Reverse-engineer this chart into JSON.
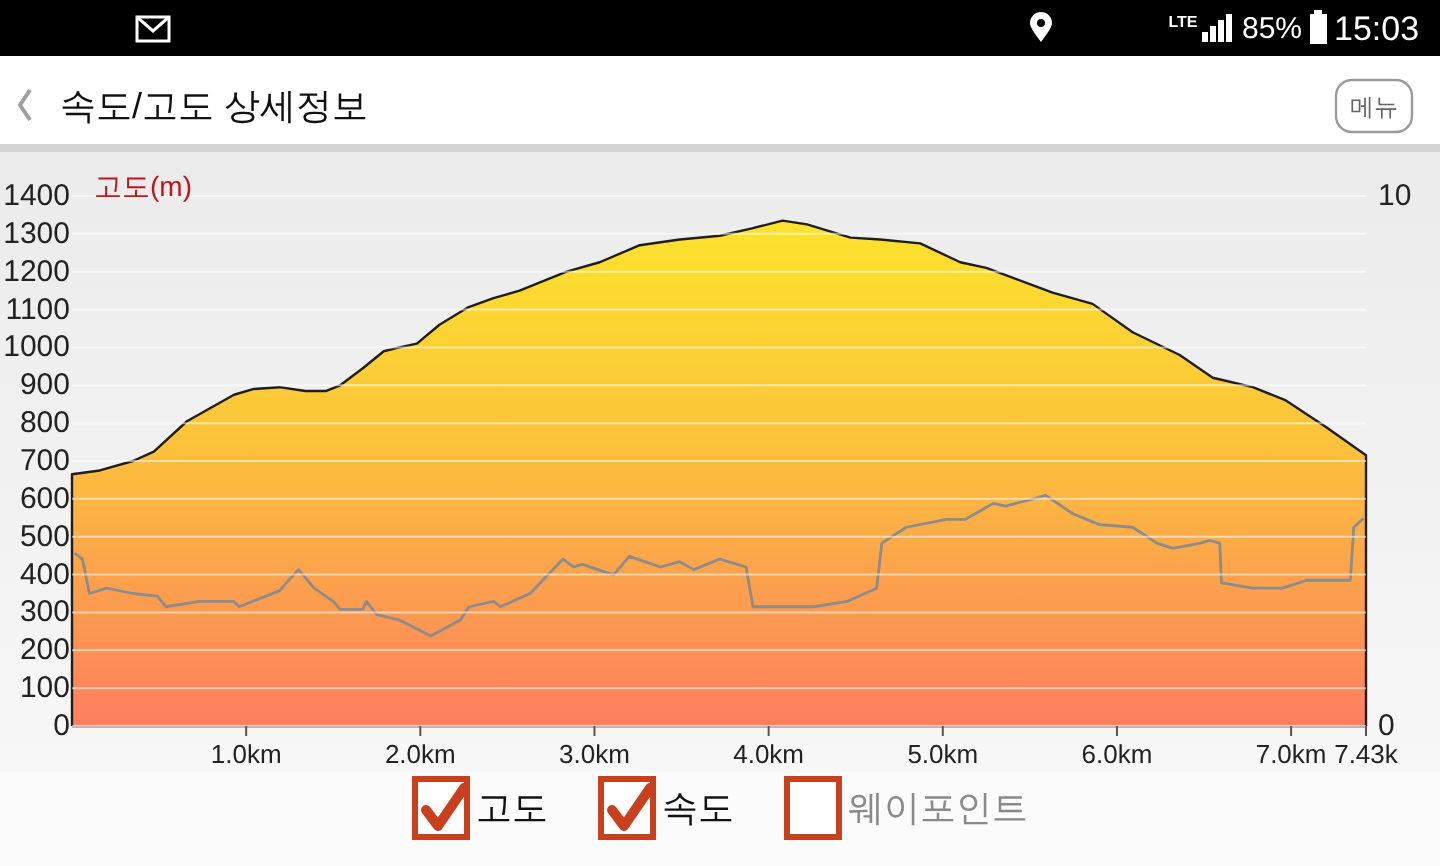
{
  "chart_data": {
    "type": "area",
    "title": "속도/고도 상세정보",
    "ylabel": "고도(m)",
    "xlim": [
      0,
      7.43
    ],
    "xticks": [
      {
        "value": 1,
        "label": "1.0km"
      },
      {
        "value": 2,
        "label": "2.0km"
      },
      {
        "value": 3,
        "label": "3.0km"
      },
      {
        "value": 4,
        "label": "4.0km"
      },
      {
        "value": 5,
        "label": "5.0km"
      },
      {
        "value": 6,
        "label": "6.0km"
      },
      {
        "value": 7,
        "label": "7.0km"
      },
      {
        "value": 7.43,
        "label": "7.43k"
      }
    ],
    "ylim": [
      0,
      1400
    ],
    "yticks": [
      0,
      100,
      200,
      300,
      400,
      500,
      600,
      700,
      800,
      900,
      1000,
      1100,
      1200,
      1300,
      1400
    ],
    "y2lim": [
      0,
      10
    ],
    "y2ticks": [
      0,
      10
    ],
    "grid": "y",
    "series": [
      {
        "color": "#fde72b",
        "x": [
          0,
          0.16,
          0.35,
          0.47,
          0.66,
          0.93,
          1.04,
          1.19,
          1.34,
          1.46,
          1.54,
          1.67,
          1.79,
          1.88,
          1.98,
          2.11,
          2.27,
          2.42,
          2.57,
          2.84,
          3.03,
          3.26,
          3.49,
          3.72,
          3.91,
          4.08,
          4.22,
          4.47,
          4.64,
          4.87,
          5.1,
          5.25,
          5.63,
          5.86,
          6.09,
          6.36,
          6.55,
          6.78,
          6.97,
          7.2,
          7.43
        ],
        "values": [
          665,
          675,
          700,
          725,
          805,
          875,
          890,
          895,
          885,
          885,
          900,
          945,
          990,
          1000,
          1010,
          1060,
          1105,
          1130,
          1150,
          1200,
          1225,
          1270,
          1285,
          1295,
          1315,
          1335,
          1325,
          1290,
          1285,
          1275,
          1225,
          1210,
          1145,
          1115,
          1040,
          980,
          920,
          895,
          860,
          790,
          715
        ]
      },
      {
        "type": "line",
        "axis": "y2",
        "color": "#8c8c8c",
        "x": [
          0.02,
          0.06,
          0.1,
          0.2,
          0.35,
          0.49,
          0.54,
          0.73,
          0.93,
          0.96,
          1.19,
          1.3,
          1.39,
          1.5,
          1.54,
          1.67,
          1.69,
          1.75,
          1.88,
          2.06,
          2.23,
          2.28,
          2.42,
          2.46,
          2.63,
          2.82,
          2.88,
          2.93,
          3.11,
          3.2,
          3.38,
          3.49,
          3.57,
          3.72,
          3.87,
          3.91,
          4.06,
          4.26,
          4.45,
          4.62,
          4.65,
          4.79,
          5.02,
          5.13,
          5.29,
          5.36,
          5.48,
          5.59,
          5.75,
          5.9,
          6.09,
          6.23,
          6.32,
          6.48,
          6.53,
          6.59,
          6.6,
          6.78,
          6.95,
          7.09,
          7.34,
          7.36,
          7.41
        ],
        "values": [
          3.25,
          3.15,
          2.5,
          2.6,
          2.5,
          2.45,
          2.25,
          2.35,
          2.35,
          2.25,
          2.55,
          2.95,
          2.6,
          2.35,
          2.2,
          2.2,
          2.35,
          2.1,
          2.0,
          1.7,
          2.0,
          2.25,
          2.35,
          2.25,
          2.5,
          3.15,
          3.0,
          3.05,
          2.85,
          3.2,
          3.0,
          3.1,
          2.95,
          3.15,
          3.0,
          2.25,
          2.25,
          2.25,
          2.35,
          2.6,
          3.45,
          3.75,
          3.9,
          3.9,
          4.2,
          4.15,
          4.25,
          4.35,
          4.0,
          3.8,
          3.75,
          3.45,
          3.35,
          3.45,
          3.5,
          3.45,
          2.7,
          2.6,
          2.6,
          2.75,
          2.75,
          3.75,
          3.9
        ]
      }
    ],
    "annotations": [
      "LTE",
      "85%",
      "15:03",
      "메뉴",
      "고도",
      "속도",
      "웨이포인트"
    ]
  }
}
